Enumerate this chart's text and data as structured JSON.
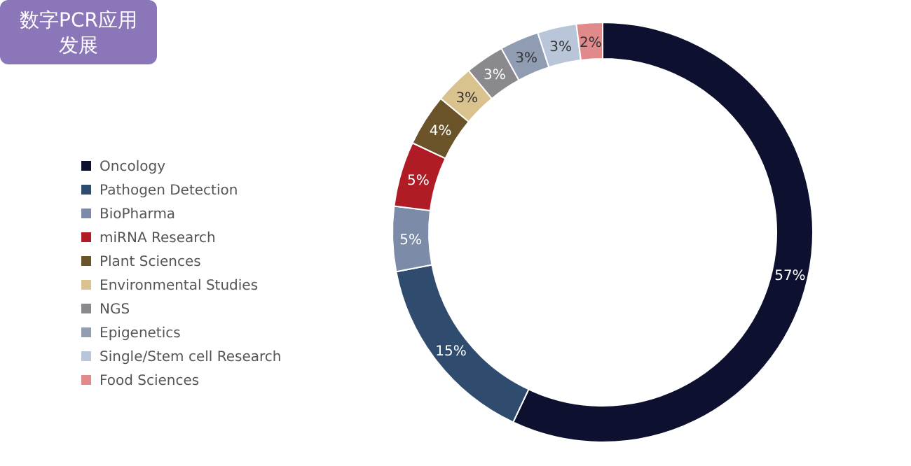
{
  "chart_data": {
    "type": "donut",
    "title": "数字PCR应用发展",
    "categories": [
      "Oncology",
      "Pathogen Detection",
      "BioPharma",
      "miRNA Research",
      "Plant Sciences",
      "Environmental Studies",
      "NGS",
      "Epigenetics",
      "Single/Stem cell Research",
      "Food Sciences"
    ],
    "values": [
      57,
      15,
      5,
      5,
      4,
      3,
      3,
      3,
      3,
      2
    ],
    "value_labels": [
      "57%",
      "15%",
      "5%",
      "5%",
      "4%",
      "3%",
      "3%",
      "3%",
      "3%",
      "2%"
    ],
    "colors": [
      "#0e1030",
      "#2f4b6e",
      "#7c8ba8",
      "#b01c26",
      "#6a5328",
      "#d9c28e",
      "#8a8a8e",
      "#8f9cb2",
      "#b9c5d9",
      "#e08a8c"
    ],
    "legend": "left"
  }
}
